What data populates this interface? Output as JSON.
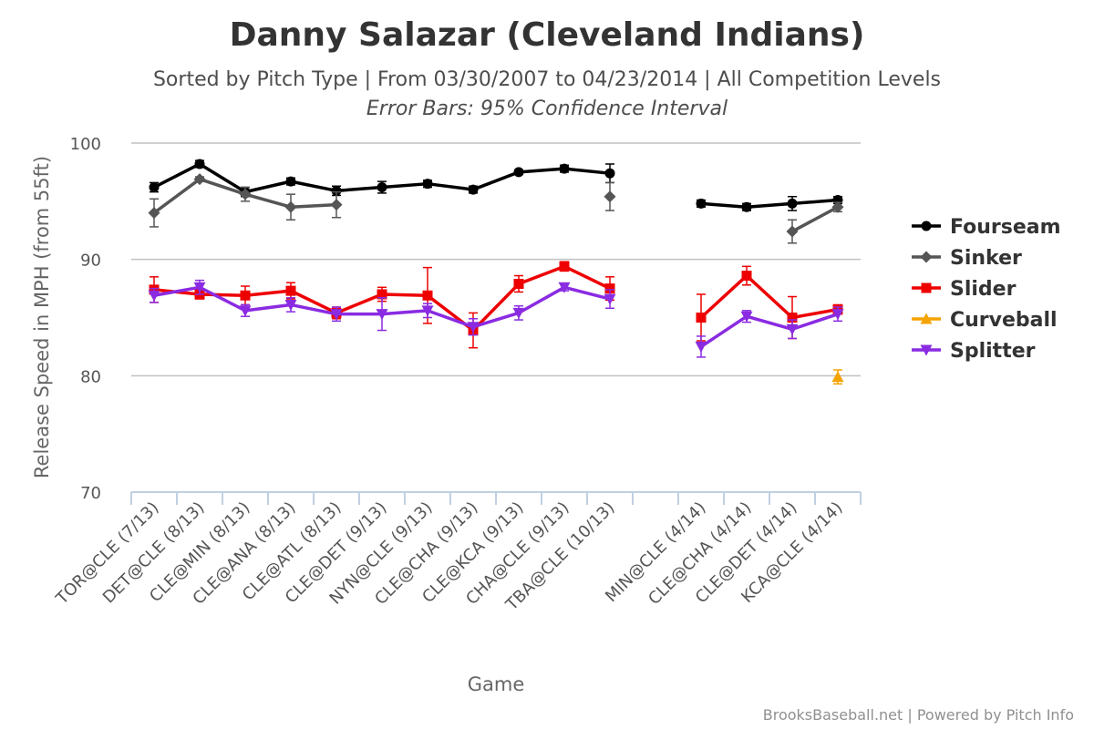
{
  "chart_data": {
    "type": "line",
    "title": "Danny Salazar (Cleveland Indians)",
    "subtitle": "Sorted by Pitch Type | From 03/30/2007 to 04/23/2014 | All Competition Levels",
    "subtitle2": "Error Bars: 95% Confidence Interval",
    "xlabel": "Game",
    "ylabel": "Release Speed in MPH (from 55ft)",
    "ylim": [
      70,
      100
    ],
    "yticks": [
      70,
      80,
      90,
      100
    ],
    "grid": true,
    "legend_position": "right",
    "credits": "BrooksBaseball.net | Powered by Pitch Info",
    "categories": [
      "TOR@CLE (7/13)",
      "DET@CLE (8/13)",
      "CLE@MIN (8/13)",
      "CLE@ANA (8/13)",
      "CLE@ATL (8/13)",
      "CLE@DET (9/13)",
      "NYN@CLE (9/13)",
      "CLE@CHA (9/13)",
      "CLE@KCA (9/13)",
      "CHA@CLE (9/13)",
      "TBA@CLE (10/13)",
      "",
      "MIN@CLE (4/14)",
      "CLE@CHA (4/14)",
      "CLE@DET (4/14)",
      "KCA@CLE (4/14)"
    ],
    "series": [
      {
        "name": "Fourseam",
        "color": "#000000",
        "marker": "circle",
        "values": [
          96.2,
          98.2,
          95.8,
          96.7,
          95.9,
          96.2,
          96.5,
          96.0,
          97.5,
          97.8,
          97.4,
          null,
          94.8,
          94.5,
          94.8,
          95.1
        ],
        "errors": [
          0.4,
          0.3,
          0.4,
          0.3,
          0.4,
          0.5,
          0.3,
          0.3,
          0.2,
          0.3,
          0.8,
          null,
          0.3,
          0.3,
          0.6,
          0.3
        ]
      },
      {
        "name": "Sinker",
        "color": "#555555",
        "marker": "diamond",
        "values": [
          94.0,
          96.9,
          95.6,
          94.5,
          94.7,
          null,
          null,
          null,
          null,
          null,
          95.4,
          null,
          null,
          null,
          92.4,
          94.5
        ],
        "errors": [
          1.2,
          0.2,
          0.6,
          1.1,
          1.1,
          null,
          null,
          null,
          null,
          null,
          1.2,
          null,
          null,
          null,
          1.0,
          0.4
        ]
      },
      {
        "name": "Slider",
        "color": "#ee0000",
        "marker": "square",
        "values": [
          87.4,
          87.0,
          86.9,
          87.3,
          85.4,
          87.0,
          86.9,
          83.9,
          87.9,
          89.4,
          87.5,
          null,
          85.0,
          88.6,
          85.0,
          85.7
        ],
        "errors": [
          1.1,
          0.4,
          0.8,
          0.7,
          0.5,
          0.6,
          2.4,
          1.5,
          0.7,
          0.4,
          1.0,
          null,
          2.0,
          0.8,
          1.8,
          0.4
        ]
      },
      {
        "name": "Curveball",
        "color": "#f5a300",
        "marker": "triangle",
        "values": [
          null,
          null,
          null,
          null,
          null,
          null,
          null,
          null,
          null,
          null,
          null,
          null,
          null,
          null,
          null,
          79.9
        ],
        "errors": [
          null,
          null,
          null,
          null,
          null,
          null,
          null,
          null,
          null,
          null,
          null,
          null,
          null,
          null,
          null,
          0.6
        ]
      },
      {
        "name": "Splitter",
        "color": "#8a2be2",
        "marker": "triangle-down",
        "values": [
          86.9,
          87.6,
          85.6,
          86.1,
          85.3,
          85.3,
          85.6,
          84.2,
          85.4,
          87.6,
          86.6,
          null,
          82.5,
          85.1,
          84.0,
          85.3
        ],
        "errors": [
          0.6,
          0.6,
          0.5,
          0.6,
          0.6,
          1.4,
          0.6,
          0.7,
          0.6,
          0.3,
          0.8,
          null,
          0.9,
          0.5,
          0.8,
          0.6
        ]
      }
    ]
  }
}
